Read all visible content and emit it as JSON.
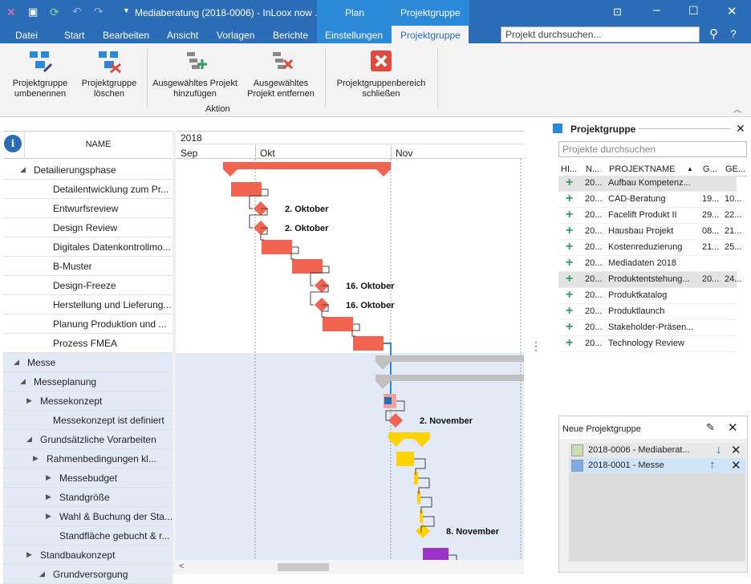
{
  "window": {
    "title": "Mediaberatung (2018-0006) - InLoox now ...",
    "context_group": "Plan",
    "context_tab": "Projektgruppe"
  },
  "menu": [
    "Datei",
    "Start",
    "Bearbeiten",
    "Ansicht",
    "Vorlagen",
    "Berichte",
    "Einstellungen",
    "Projektgruppe"
  ],
  "search": {
    "placeholder": "Projekt durchsuchen..."
  },
  "ribbon": {
    "rename": "Projektgruppe umbenennen",
    "delete": "Projektgruppe löschen",
    "add": "Ausgewähltes Projekt hinzufügen",
    "remove": "Ausgewähltes Projekt entfernen",
    "close": "Projektgruppenbereich schließen",
    "group_label": "Aktion"
  },
  "grid": {
    "header_name": "NAME",
    "year": "2018",
    "months": [
      "Sep",
      "Okt",
      "Nov"
    ]
  },
  "tasks": [
    "Detailierungsphase",
    "Detailentwicklung zum Pr...",
    "Entwurfsreview",
    "Design Review",
    "Digitales Datenkontrollmo...",
    "B-Muster",
    "Design-Freeze",
    "Herstellung und Lieferung...",
    "Planung Produktion und ...",
    "Prozess FMEA",
    "Messe",
    "Messeplanung",
    "Messekonzept",
    "Messekonzept ist definiert",
    "Grundsätzliche Vorarbeiten",
    "Rahmenbedingungen kl...",
    "Messebudget",
    "Standgröße",
    "Wahl & Buchung der Sta...",
    "Standfläche gebucht & r...",
    "Standbaukonzept",
    "Grundversorgung"
  ],
  "milestones": [
    "2. Oktober",
    "2. Oktober",
    "16. Oktober",
    "16. Oktober",
    "2. November",
    "8. November"
  ],
  "colors": {
    "red": "#f26350",
    "yellow": "#ffd200",
    "purple": "#9b33c9",
    "gray": "#c0c0c0",
    "blue": "#2b6cb6"
  },
  "projectgroup": {
    "title": "Projektgruppe",
    "search_placeholder": "Projekte durchsuchen",
    "columns": [
      "HI...",
      "N...",
      "PROJEKTNAME",
      "G...",
      "GE..."
    ],
    "projects": [
      {
        "n": "20...",
        "name": "Aufbau Kompetenz...",
        "g": "",
        "ge": ""
      },
      {
        "n": "20...",
        "name": "CAD-Beratung",
        "g": "19...",
        "ge": "10..."
      },
      {
        "n": "20...",
        "name": "Facelift Produkt II",
        "g": "29...",
        "ge": "22..."
      },
      {
        "n": "20...",
        "name": "Hausbau Projekt",
        "g": "08...",
        "ge": "21..."
      },
      {
        "n": "20...",
        "name": "Kostenreduzierung",
        "g": "21...",
        "ge": "25..."
      },
      {
        "n": "20...",
        "name": "Mediadaten 2018",
        "g": "",
        "ge": ""
      },
      {
        "n": "20...",
        "name": "Produktentstehung...",
        "g": "20...",
        "ge": "24..."
      },
      {
        "n": "20...",
        "name": "Produktkatalog",
        "g": "",
        "ge": ""
      },
      {
        "n": "20...",
        "name": "Produktlaunch",
        "g": "",
        "ge": ""
      },
      {
        "n": "20...",
        "name": "Stakeholder-Präsen...",
        "g": "",
        "ge": ""
      },
      {
        "n": "20...",
        "name": "Technology Review",
        "g": "",
        "ge": ""
      }
    ],
    "new_group": "Neue Projektgruppe",
    "members": [
      "2018-0006 - Mediaberat...",
      "2018-0001 - Messe"
    ]
  }
}
